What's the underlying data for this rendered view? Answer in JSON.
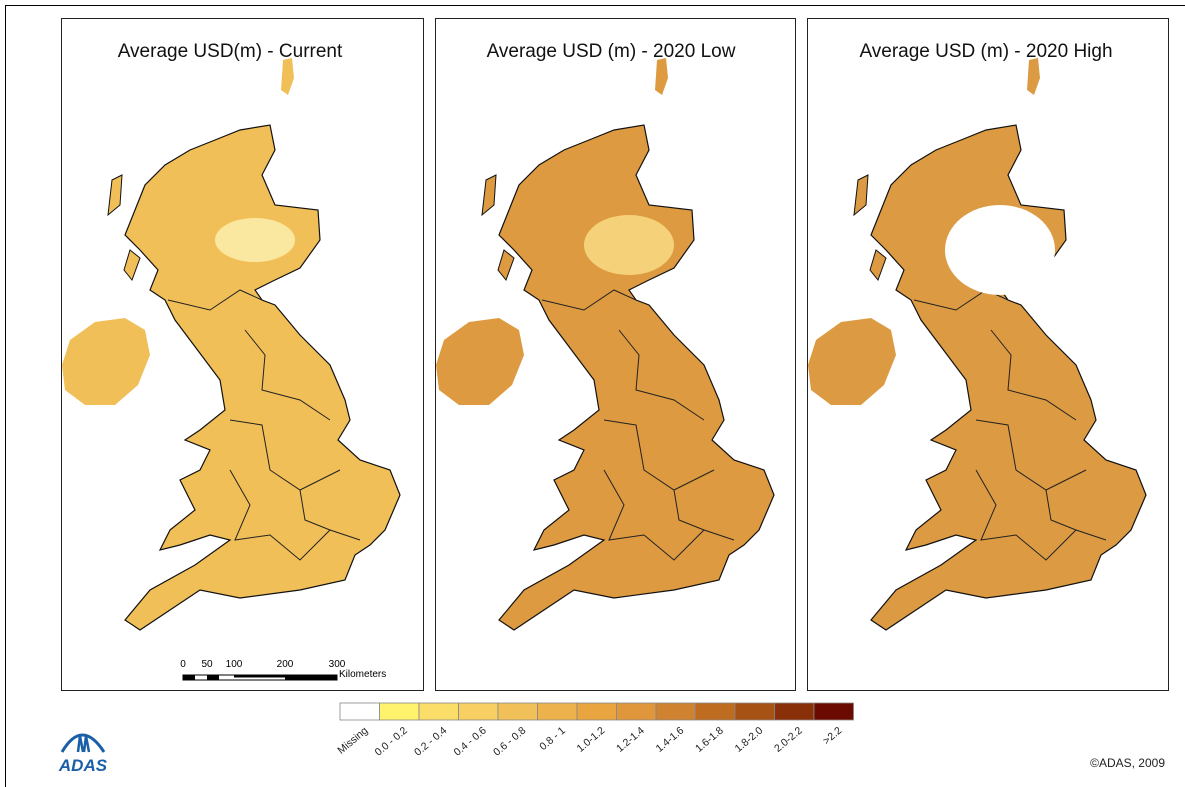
{
  "panels": [
    {
      "title": "Average USD(m) - Current"
    },
    {
      "title": "Average USD (m) - 2020 Low"
    },
    {
      "title": "Average USD (m) - 2020 High"
    }
  ],
  "legend": [
    {
      "label": "Missing",
      "color": "#ffffff"
    },
    {
      "label": "0.0 - 0.2",
      "color": "#fff26c"
    },
    {
      "label": "0.2 - 0.4",
      "color": "#fbdd6a"
    },
    {
      "label": "0.4 - 0.6",
      "color": "#f7cf62"
    },
    {
      "label": "0.6 - 0.8",
      "color": "#f2c058"
    },
    {
      "label": "0.8 - 1",
      "color": "#edb24c"
    },
    {
      "label": "1.0-1.2",
      "color": "#e9a540"
    },
    {
      "label": "1.2-1.4",
      "color": "#e0963a"
    },
    {
      "label": "1.4-1.6",
      "color": "#cf8230"
    },
    {
      "label": "1.6-1.8",
      "color": "#bd6c20"
    },
    {
      "label": "1.8-2.0",
      "color": "#a65214"
    },
    {
      "label": "2.0-2.2",
      "color": "#8a3008"
    },
    {
      "label": ">2.2",
      "color": "#6b0a00"
    }
  ],
  "scale_bar": {
    "labels": [
      "0",
      "50",
      "100",
      "200",
      "300"
    ],
    "unit": "Kilometers"
  },
  "logo": "ADAS",
  "copyright": "©ADAS, 2009"
}
